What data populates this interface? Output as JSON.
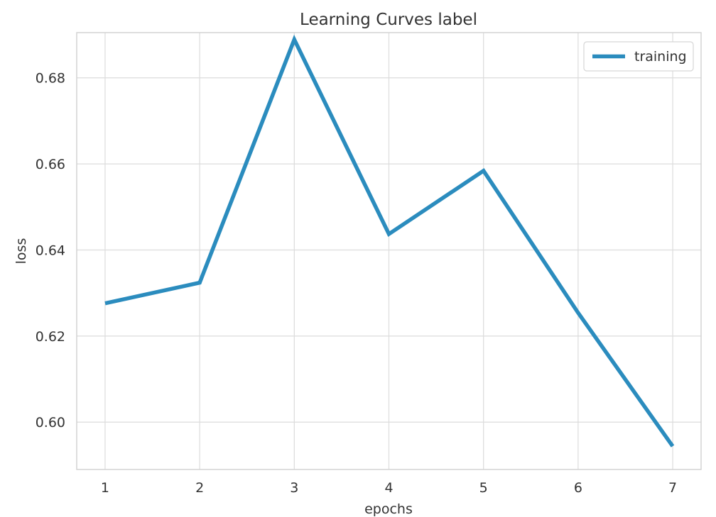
{
  "chart_data": {
    "type": "line",
    "title": "Learning Curves label",
    "xlabel": "epochs",
    "ylabel": "loss",
    "x": [
      1,
      2,
      3,
      4,
      5,
      6,
      7
    ],
    "xticks": [
      1,
      2,
      3,
      4,
      5,
      6,
      7
    ],
    "yticks": [
      "0.60",
      "0.62",
      "0.64",
      "0.66",
      "0.68"
    ],
    "xlim": [
      0.7,
      7.3
    ],
    "ylim": [
      0.589,
      0.6905
    ],
    "grid": true,
    "legend_position": "top-right",
    "series": [
      {
        "name": "training",
        "color": "#2b8cbe",
        "values": [
          0.6276,
          0.6324,
          0.6889,
          0.6437,
          0.6584,
          0.6254,
          0.5944
        ]
      }
    ]
  }
}
